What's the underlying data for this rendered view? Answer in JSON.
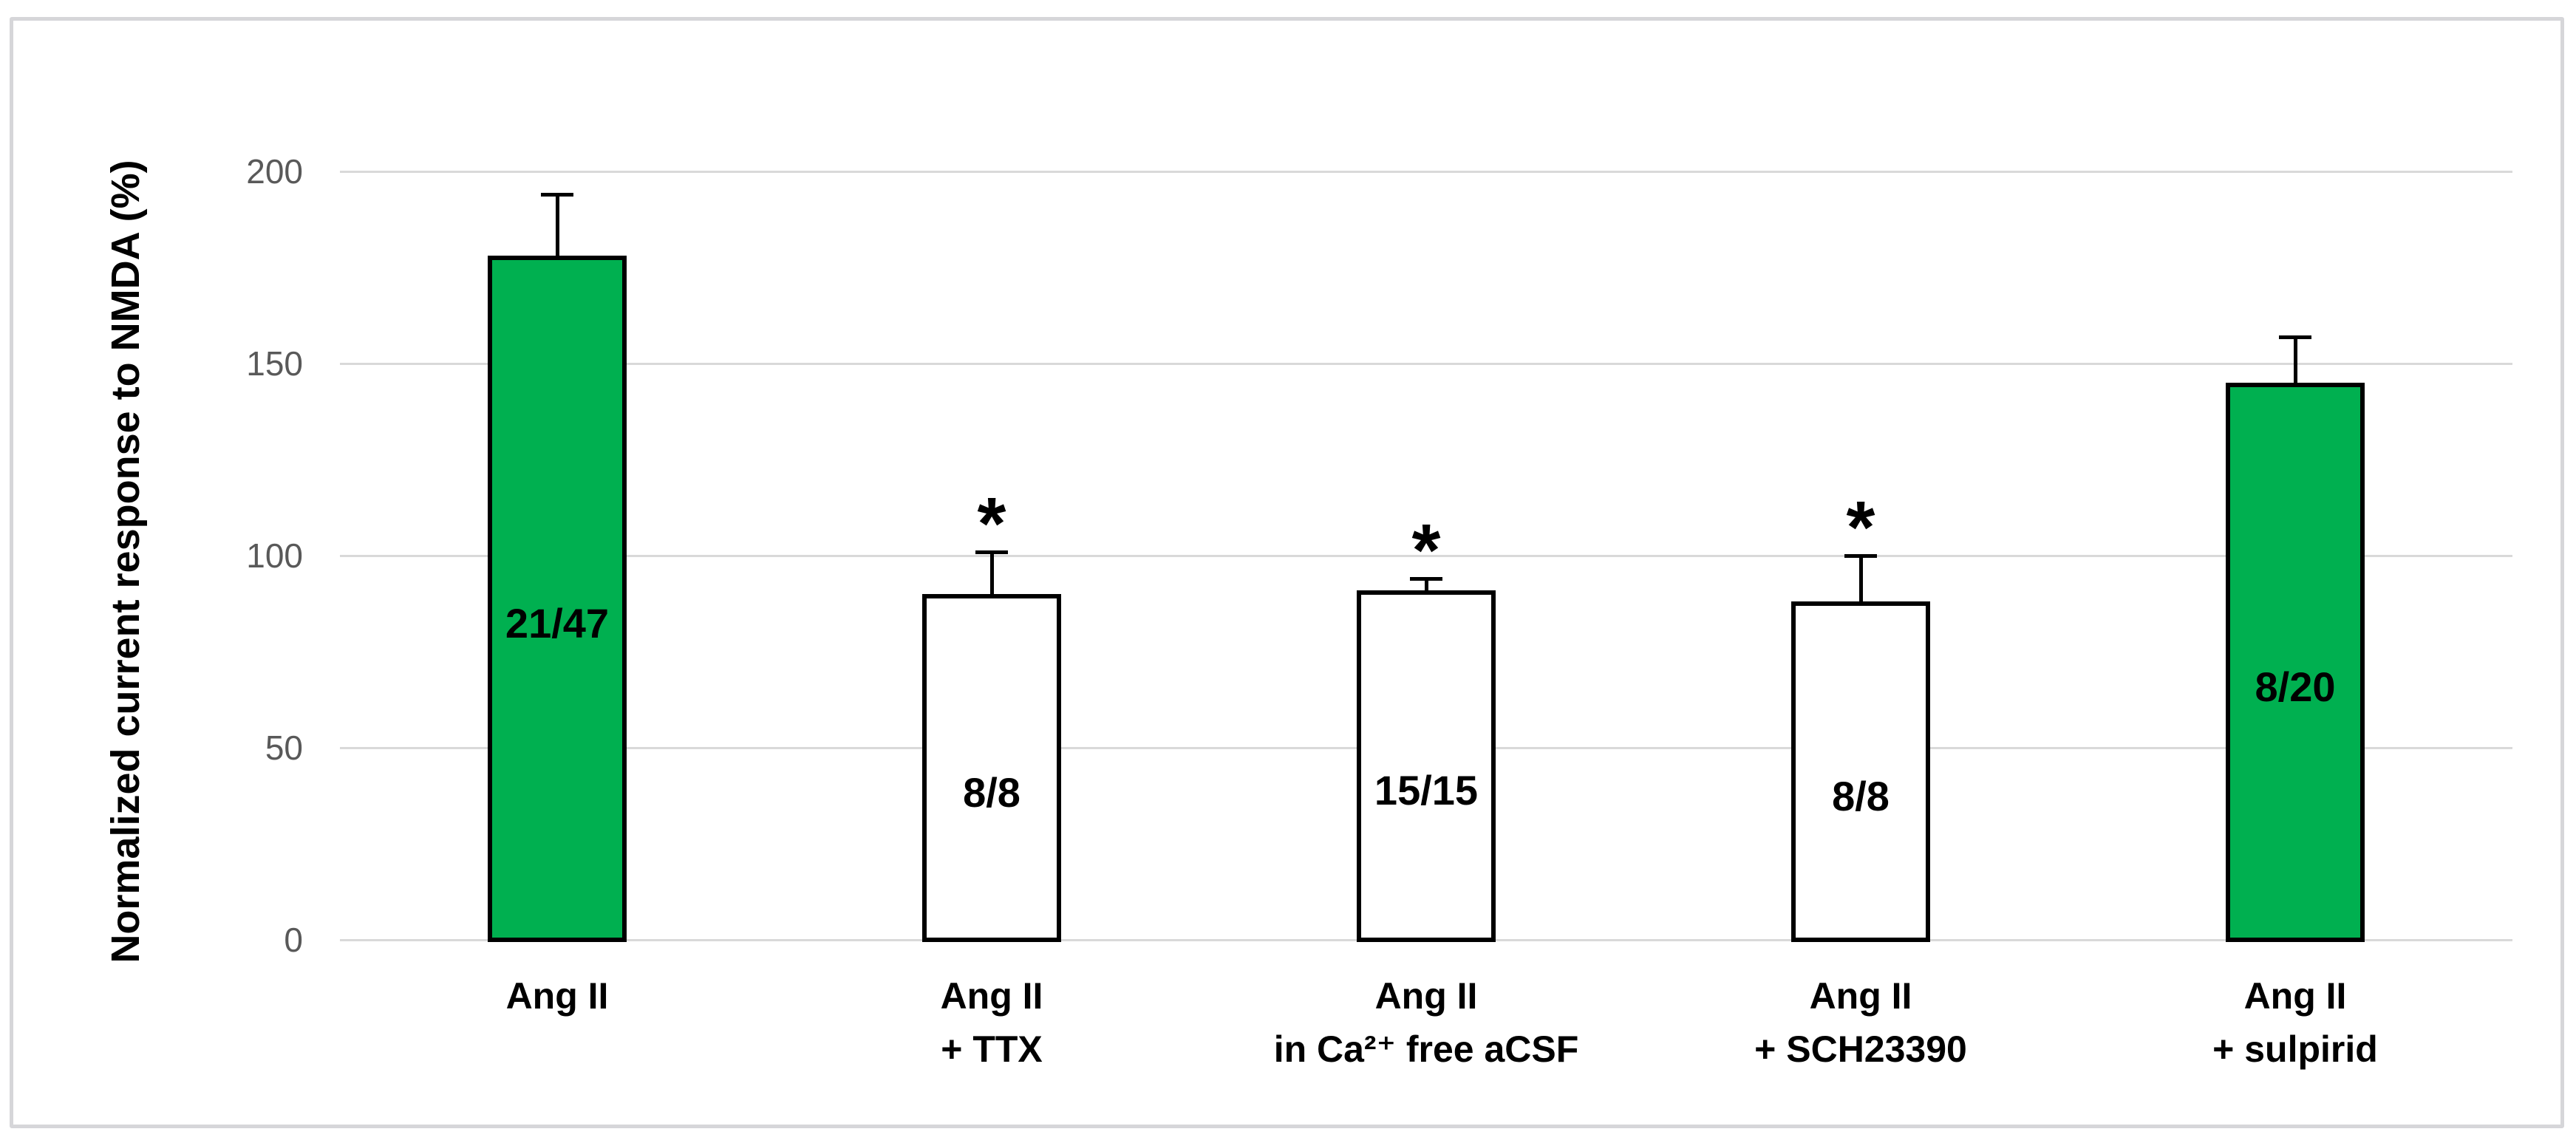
{
  "chart_data": {
    "type": "bar",
    "title": "",
    "xlabel": "",
    "ylabel": "Normalized current response to NMDA (%)",
    "ylim": [
      0,
      220
    ],
    "yticks": [
      0,
      50,
      100,
      150,
      200
    ],
    "grid": "horizontal",
    "legend_position": "none",
    "categories": [
      [
        "Ang II",
        ""
      ],
      [
        "Ang II",
        "+ TTX"
      ],
      [
        "Ang II",
        "in Ca²⁺ free aCSF"
      ],
      [
        "Ang II",
        "+ SCH23390"
      ],
      [
        "Ang II",
        "+ sulpirid"
      ]
    ],
    "values": [
      178,
      90,
      91,
      88,
      145
    ],
    "error_bar_tops": [
      194,
      101,
      94,
      100,
      157
    ],
    "bar_labels": [
      "21/47",
      "8/8",
      "15/15",
      "8/8",
      "8/20"
    ],
    "significance_marker": "*",
    "significant": [
      false,
      true,
      true,
      true,
      false
    ],
    "bar_fill_colors": [
      "#00B050",
      "#FFFFFF",
      "#FFFFFF",
      "#FFFFFF",
      "#00B050"
    ],
    "bar_border_color": "#000000",
    "gridline_color": "#D9D9D9",
    "tick_label_color": "#595959",
    "frame_border_color": "#D6D6D9"
  }
}
